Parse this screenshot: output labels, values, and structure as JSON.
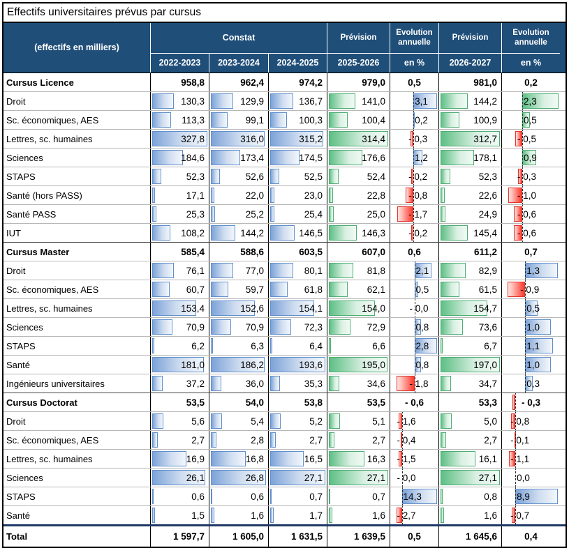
{
  "title": "Effectifs universitaires prévus par cursus",
  "colors": {
    "header_bg": "#1F4E79",
    "bar_blue": "#7DA3D8",
    "bar_green": "#5EBF85",
    "bar_red": "#FF372B",
    "total_separator": "#1F3864"
  },
  "header": {
    "unit_label": "(effectifs en milliers)",
    "constat": "Constat",
    "prevision1": "Prévision",
    "evolution1": "Evolution annuelle",
    "prevision2": "Prévision",
    "evolution2": "Evolution annuelle",
    "years": [
      "2022-2023",
      "2023-2024",
      "2024-2025",
      "2025-2026",
      "en %",
      "2026-2027",
      "en %"
    ]
  },
  "sections": [
    {
      "id": "licence",
      "subtotal": {
        "label": "Cursus Licence",
        "values": [
          "958,8",
          "962,4",
          "974,2",
          "979,0",
          "0,5",
          "981,0",
          "0,2"
        ]
      },
      "rows": [
        {
          "label": "Droit",
          "values": [
            "130,3",
            "129,9",
            "136,7",
            "141,0",
            "3,1",
            "144,2",
            "2,3"
          ]
        },
        {
          "label": "Sc. économiques, AES",
          "values": [
            "113,3",
            "99,1",
            "100,3",
            "100,4",
            "0,2",
            "100,9",
            "0,5"
          ]
        },
        {
          "label": "Lettres, sc. humaines",
          "values": [
            "327,8",
            "316,0",
            "315,2",
            "314,4",
            "- 0,3",
            "312,7",
            "- 0,5"
          ]
        },
        {
          "label": "Sciences",
          "values": [
            "184,6",
            "173,4",
            "174,5",
            "176,6",
            "1,2",
            "178,1",
            "0,9"
          ]
        },
        {
          "label": "STAPS",
          "values": [
            "52,3",
            "52,6",
            "52,5",
            "52,4",
            "- 0,2",
            "52,3",
            "- 0,3"
          ]
        },
        {
          "label": "Santé (hors PASS)",
          "values": [
            "17,1",
            "22,0",
            "23,0",
            "22,8",
            "- 0,8",
            "22,6",
            "- 1,0"
          ]
        },
        {
          "label": "Santé PASS",
          "values": [
            "25,3",
            "25,2",
            "25,4",
            "25,0",
            "- 1,7",
            "24,9",
            "- 0,6"
          ]
        },
        {
          "label": "IUT",
          "values": [
            "108,2",
            "144,2",
            "146,5",
            "146,3",
            "- 0,2",
            "145,4",
            "- 0,6"
          ]
        }
      ]
    },
    {
      "id": "master",
      "subtotal": {
        "label": "Cursus Master",
        "values": [
          "585,4",
          "588,6",
          "603,5",
          "607,0",
          "0,6",
          "611,2",
          "0,7"
        ]
      },
      "rows": [
        {
          "label": "Droit",
          "values": [
            "76,1",
            "77,0",
            "80,1",
            "81,8",
            "2,1",
            "82,9",
            "1,3"
          ]
        },
        {
          "label": "Sc. économiques, AES",
          "values": [
            "60,7",
            "59,7",
            "61,8",
            "62,1",
            "0,5",
            "61,5",
            "- 0,9"
          ]
        },
        {
          "label": "Lettres, sc. humaines",
          "values": [
            "153,4",
            "152,6",
            "154,1",
            "154,0",
            "- 0,0",
            "154,7",
            "0,5"
          ]
        },
        {
          "label": "Sciences",
          "values": [
            "70,9",
            "70,9",
            "72,3",
            "72,9",
            "0,8",
            "73,6",
            "1,0"
          ]
        },
        {
          "label": "STAPS",
          "values": [
            "6,2",
            "6,3",
            "6,4",
            "6,6",
            "2,8",
            "6,7",
            "1,1"
          ]
        },
        {
          "label": "Santé",
          "values": [
            "181,0",
            "186,2",
            "193,6",
            "195,0",
            "0,8",
            "197,0",
            "1,0"
          ]
        },
        {
          "label": "Ingénieurs universitaires",
          "values": [
            "37,2",
            "36,0",
            "35,3",
            "34,6",
            "- 1,8",
            "34,7",
            "0,3"
          ]
        }
      ]
    },
    {
      "id": "doctorat",
      "subtotal": {
        "label": "Cursus Doctorat",
        "values": [
          "53,5",
          "54,0",
          "53,8",
          "53,5",
          "- 0,6",
          "53,3",
          "- 0,3"
        ]
      },
      "rows": [
        {
          "label": "Droit",
          "values": [
            "5,6",
            "5,4",
            "5,2",
            "5,1",
            "- 1,6",
            "5,0",
            "- 0,8"
          ]
        },
        {
          "label": "Sc. économiques, AES",
          "values": [
            "2,7",
            "2,8",
            "2,7",
            "2,7",
            "- 0,4",
            "2,7",
            "- 0,1"
          ]
        },
        {
          "label": "Lettres, sc. humaines",
          "values": [
            "16,9",
            "16,8",
            "16,5",
            "16,3",
            "- 1,5",
            "16,1",
            "- 1,1"
          ]
        },
        {
          "label": "Sciences",
          "values": [
            "26,1",
            "26,8",
            "27,1",
            "27,1",
            "- 0,0",
            "27,1",
            "0,0"
          ]
        },
        {
          "label": "STAPS",
          "values": [
            "0,6",
            "0,6",
            "0,7",
            "0,7",
            "14,3",
            "0,8",
            "8,9"
          ]
        },
        {
          "label": "Santé",
          "values": [
            "1,5",
            "1,6",
            "1,7",
            "1,6",
            "- 2,7",
            "1,6",
            "- 0,7"
          ]
        }
      ]
    }
  ],
  "total": {
    "label": "Total",
    "values": [
      "1 597,7",
      "1 605,0",
      "1 631,5",
      "1 639,5",
      "0,5",
      "1 645,6",
      "0,4"
    ]
  }
}
